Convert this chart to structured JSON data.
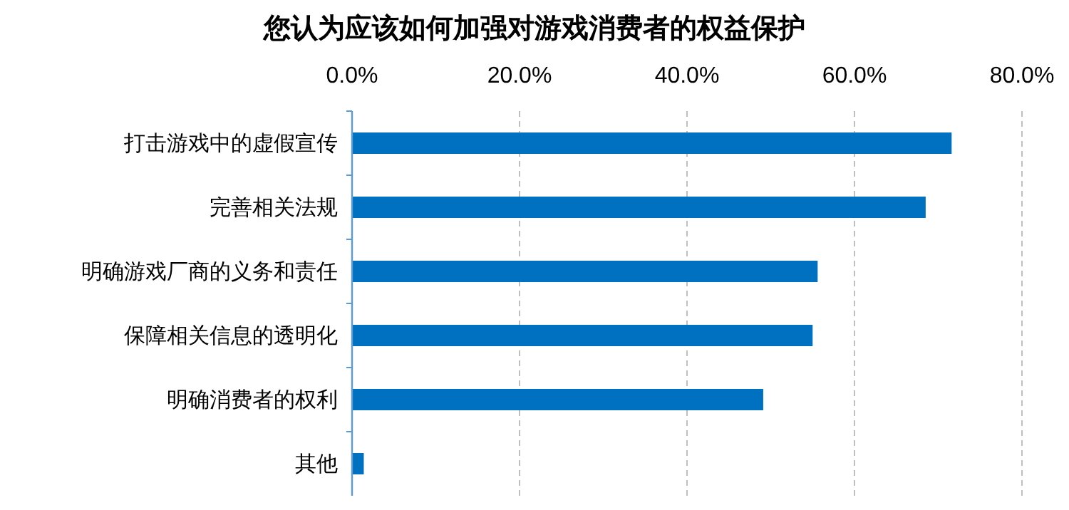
{
  "chart_data": {
    "type": "bar",
    "orientation": "horizontal",
    "title": "您认为应该如何加强对游戏消费者的权益保护",
    "categories": [
      "打击游戏中的虚假宣传",
      "完善相关法规",
      "明确游戏厂商的义务和责任",
      "保障相关信息的透明化",
      "明确消费者的权利",
      "其他"
    ],
    "values": [
      71.6,
      68.5,
      55.6,
      55.0,
      49.1,
      1.4
    ],
    "color": "#0070c0",
    "xlim": [
      0,
      80
    ],
    "xticks": [
      {
        "value": 0,
        "label": "0.0%"
      },
      {
        "value": 20,
        "label": "20.0%"
      },
      {
        "value": 40,
        "label": "40.0%"
      },
      {
        "value": 60,
        "label": "60.0%"
      },
      {
        "value": 80,
        "label": "80.0%"
      }
    ],
    "grid": "x"
  }
}
